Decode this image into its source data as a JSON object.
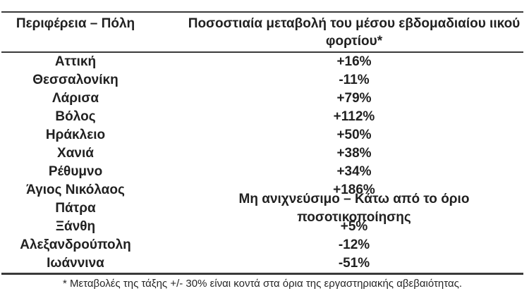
{
  "table": {
    "header": {
      "col1": "Περιφέρεια – Πόλη",
      "col2_full": "Ποσοστιαία μεταβολή του μέσου εβδομαδιαίου ιικού φορτίου*",
      "col2_line1": "Ποσοστιαία μεταβολή του μέσου εβδομαδιαίου ιικού",
      "col2_line2": "φορτίου*"
    },
    "rows": [
      {
        "city": "Αττική",
        "value": "+16%"
      },
      {
        "city": "Θεσσαλονίκη",
        "value": "-11%"
      },
      {
        "city": "Λάρισα",
        "value": "+79%"
      },
      {
        "city": "Βόλος",
        "value": "+112%"
      },
      {
        "city": "Ηράκλειο",
        "value": "+50%"
      },
      {
        "city": "Χανιά",
        "value": "+38%"
      },
      {
        "city": "Ρέθυμνο",
        "value": "+34%"
      },
      {
        "city": "Άγιος Νικόλαος",
        "value": "+186%"
      },
      {
        "city": "Πάτρα",
        "value": "Μη ανιχνεύσιμο – Κάτω από το όριο ποσοτικοποίησης"
      },
      {
        "city": "Ξάνθη",
        "value": "+5%"
      },
      {
        "city": "Αλεξανδρούπολη",
        "value": "-12%"
      },
      {
        "city": "Ιωάννινα",
        "value": "-51%"
      }
    ],
    "footnote": "* Μεταβολές της τάξης +/- 30% είναι κοντά στα όρια της εργαστηριακής αβεβαιότητας.",
    "colors": {
      "text": "#212121",
      "rule": "#3a3a3a",
      "background": "#ffffff"
    }
  },
  "chart_data": {
    "type": "table",
    "title": "",
    "columns": [
      "Περιφέρεια – Πόλη",
      "Ποσοστιαία μεταβολή του μέσου εβδομαδιαίου ιικού φορτίου*"
    ],
    "categories": [
      "Αττική",
      "Θεσσαλονίκη",
      "Λάρισα",
      "Βόλος",
      "Ηράκλειο",
      "Χανιά",
      "Ρέθυμνο",
      "Άγιος Νικόλαος",
      "Πάτρα",
      "Ξάνθη",
      "Αλεξανδρούπολη",
      "Ιωάννινα"
    ],
    "values": [
      16,
      -11,
      79,
      112,
      50,
      38,
      34,
      186,
      null,
      5,
      -12,
      -51
    ],
    "value_labels": [
      "+16%",
      "-11%",
      "+79%",
      "+112%",
      "+50%",
      "+38%",
      "+34%",
      "+186%",
      "Μη ανιχνεύσιμο – Κάτω από το όριο ποσοτικοποίησης",
      "+5%",
      "-12%",
      "-51%"
    ],
    "footnote": "* Μεταβολές της τάξης +/- 30% είναι κοντά στα όρια της εργαστηριακής αβεβαιότητας."
  }
}
